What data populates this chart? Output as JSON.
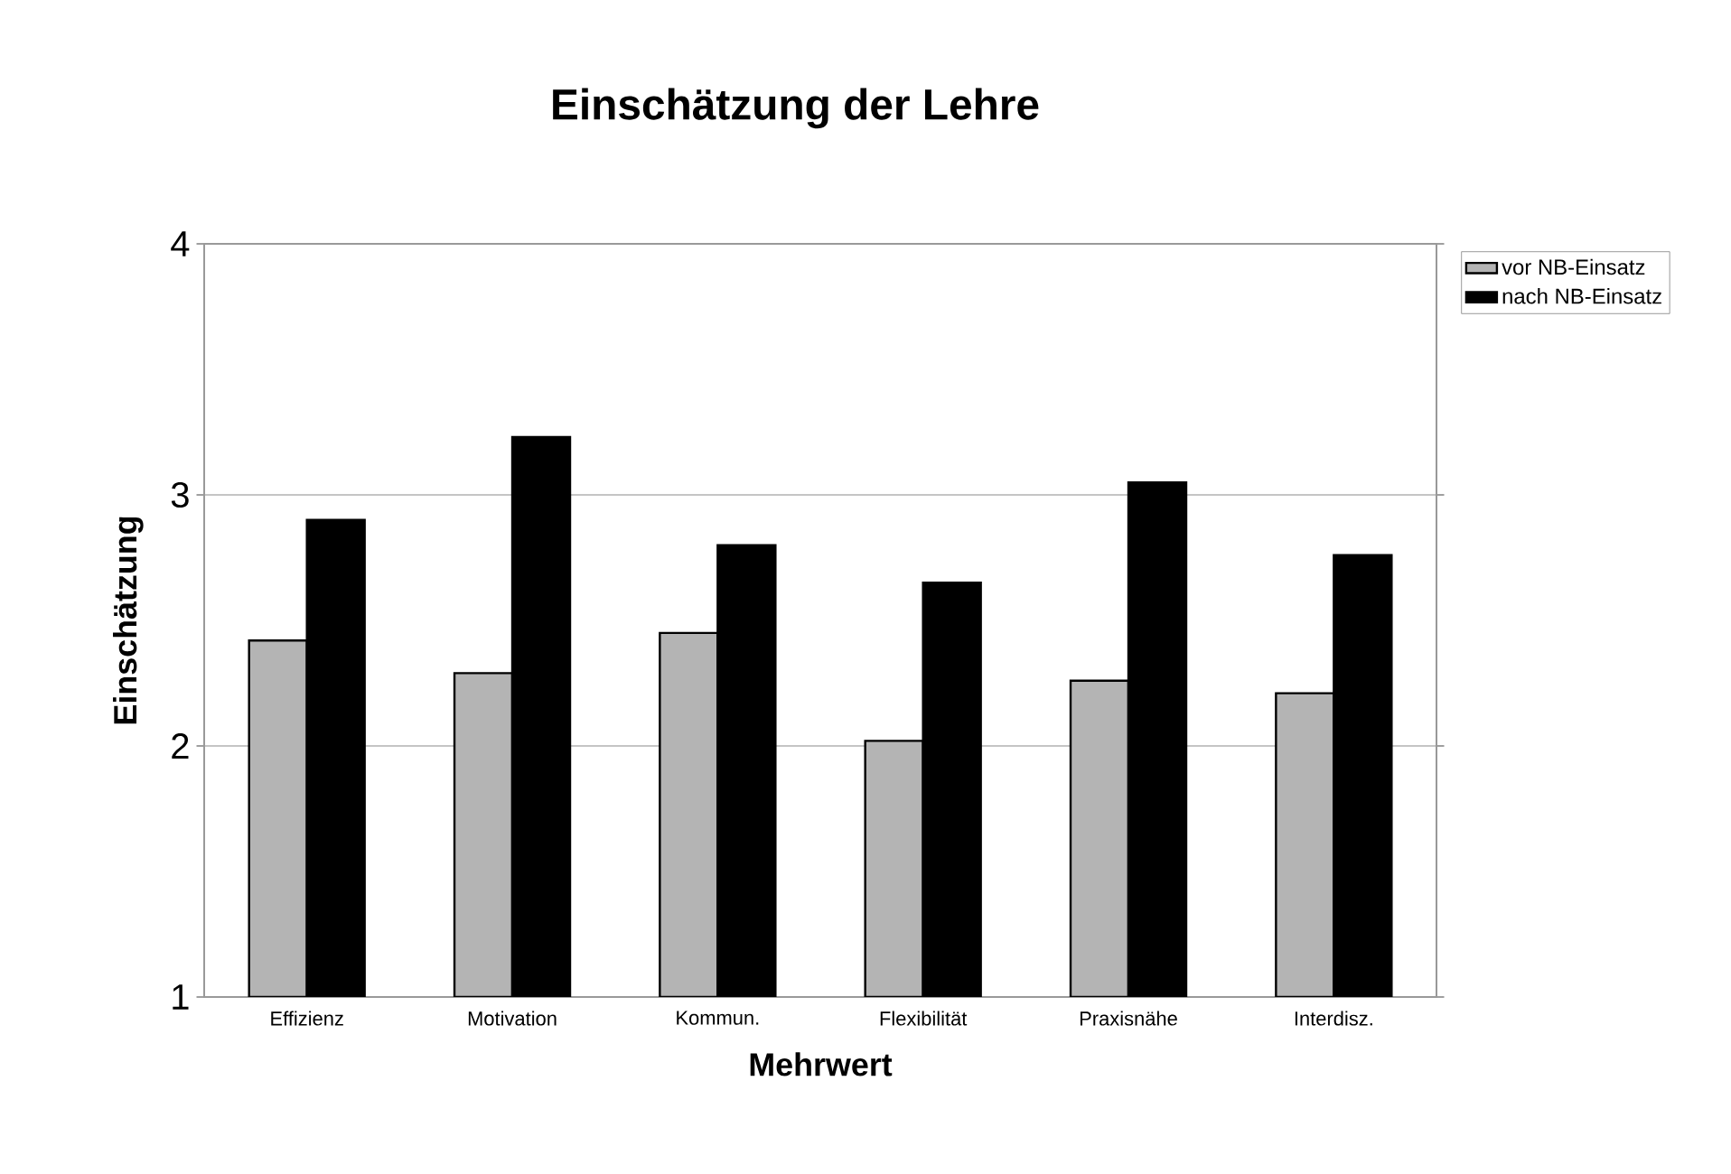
{
  "chart_data": {
    "type": "bar",
    "title": "Einschätzung der Lehre",
    "xlabel": "Mehrwert",
    "ylabel": "Einschätzung",
    "categories": [
      "Effizienz",
      "Motivation",
      "Kommun.",
      "Flexibilität",
      "Praxisnähe",
      "Interdisz."
    ],
    "series": [
      {
        "name": "vor NB-Einsatz",
        "color": "#b4b4b4",
        "values": [
          2.42,
          2.29,
          2.45,
          2.02,
          2.26,
          2.21
        ]
      },
      {
        "name": "nach NB-Einsatz",
        "color": "#000000",
        "values": [
          2.9,
          3.23,
          2.8,
          2.65,
          3.05,
          2.76
        ]
      }
    ],
    "ylim": [
      1,
      4
    ],
    "yticks": [
      1,
      2,
      3,
      4
    ],
    "grid": "y",
    "legend": "right"
  }
}
